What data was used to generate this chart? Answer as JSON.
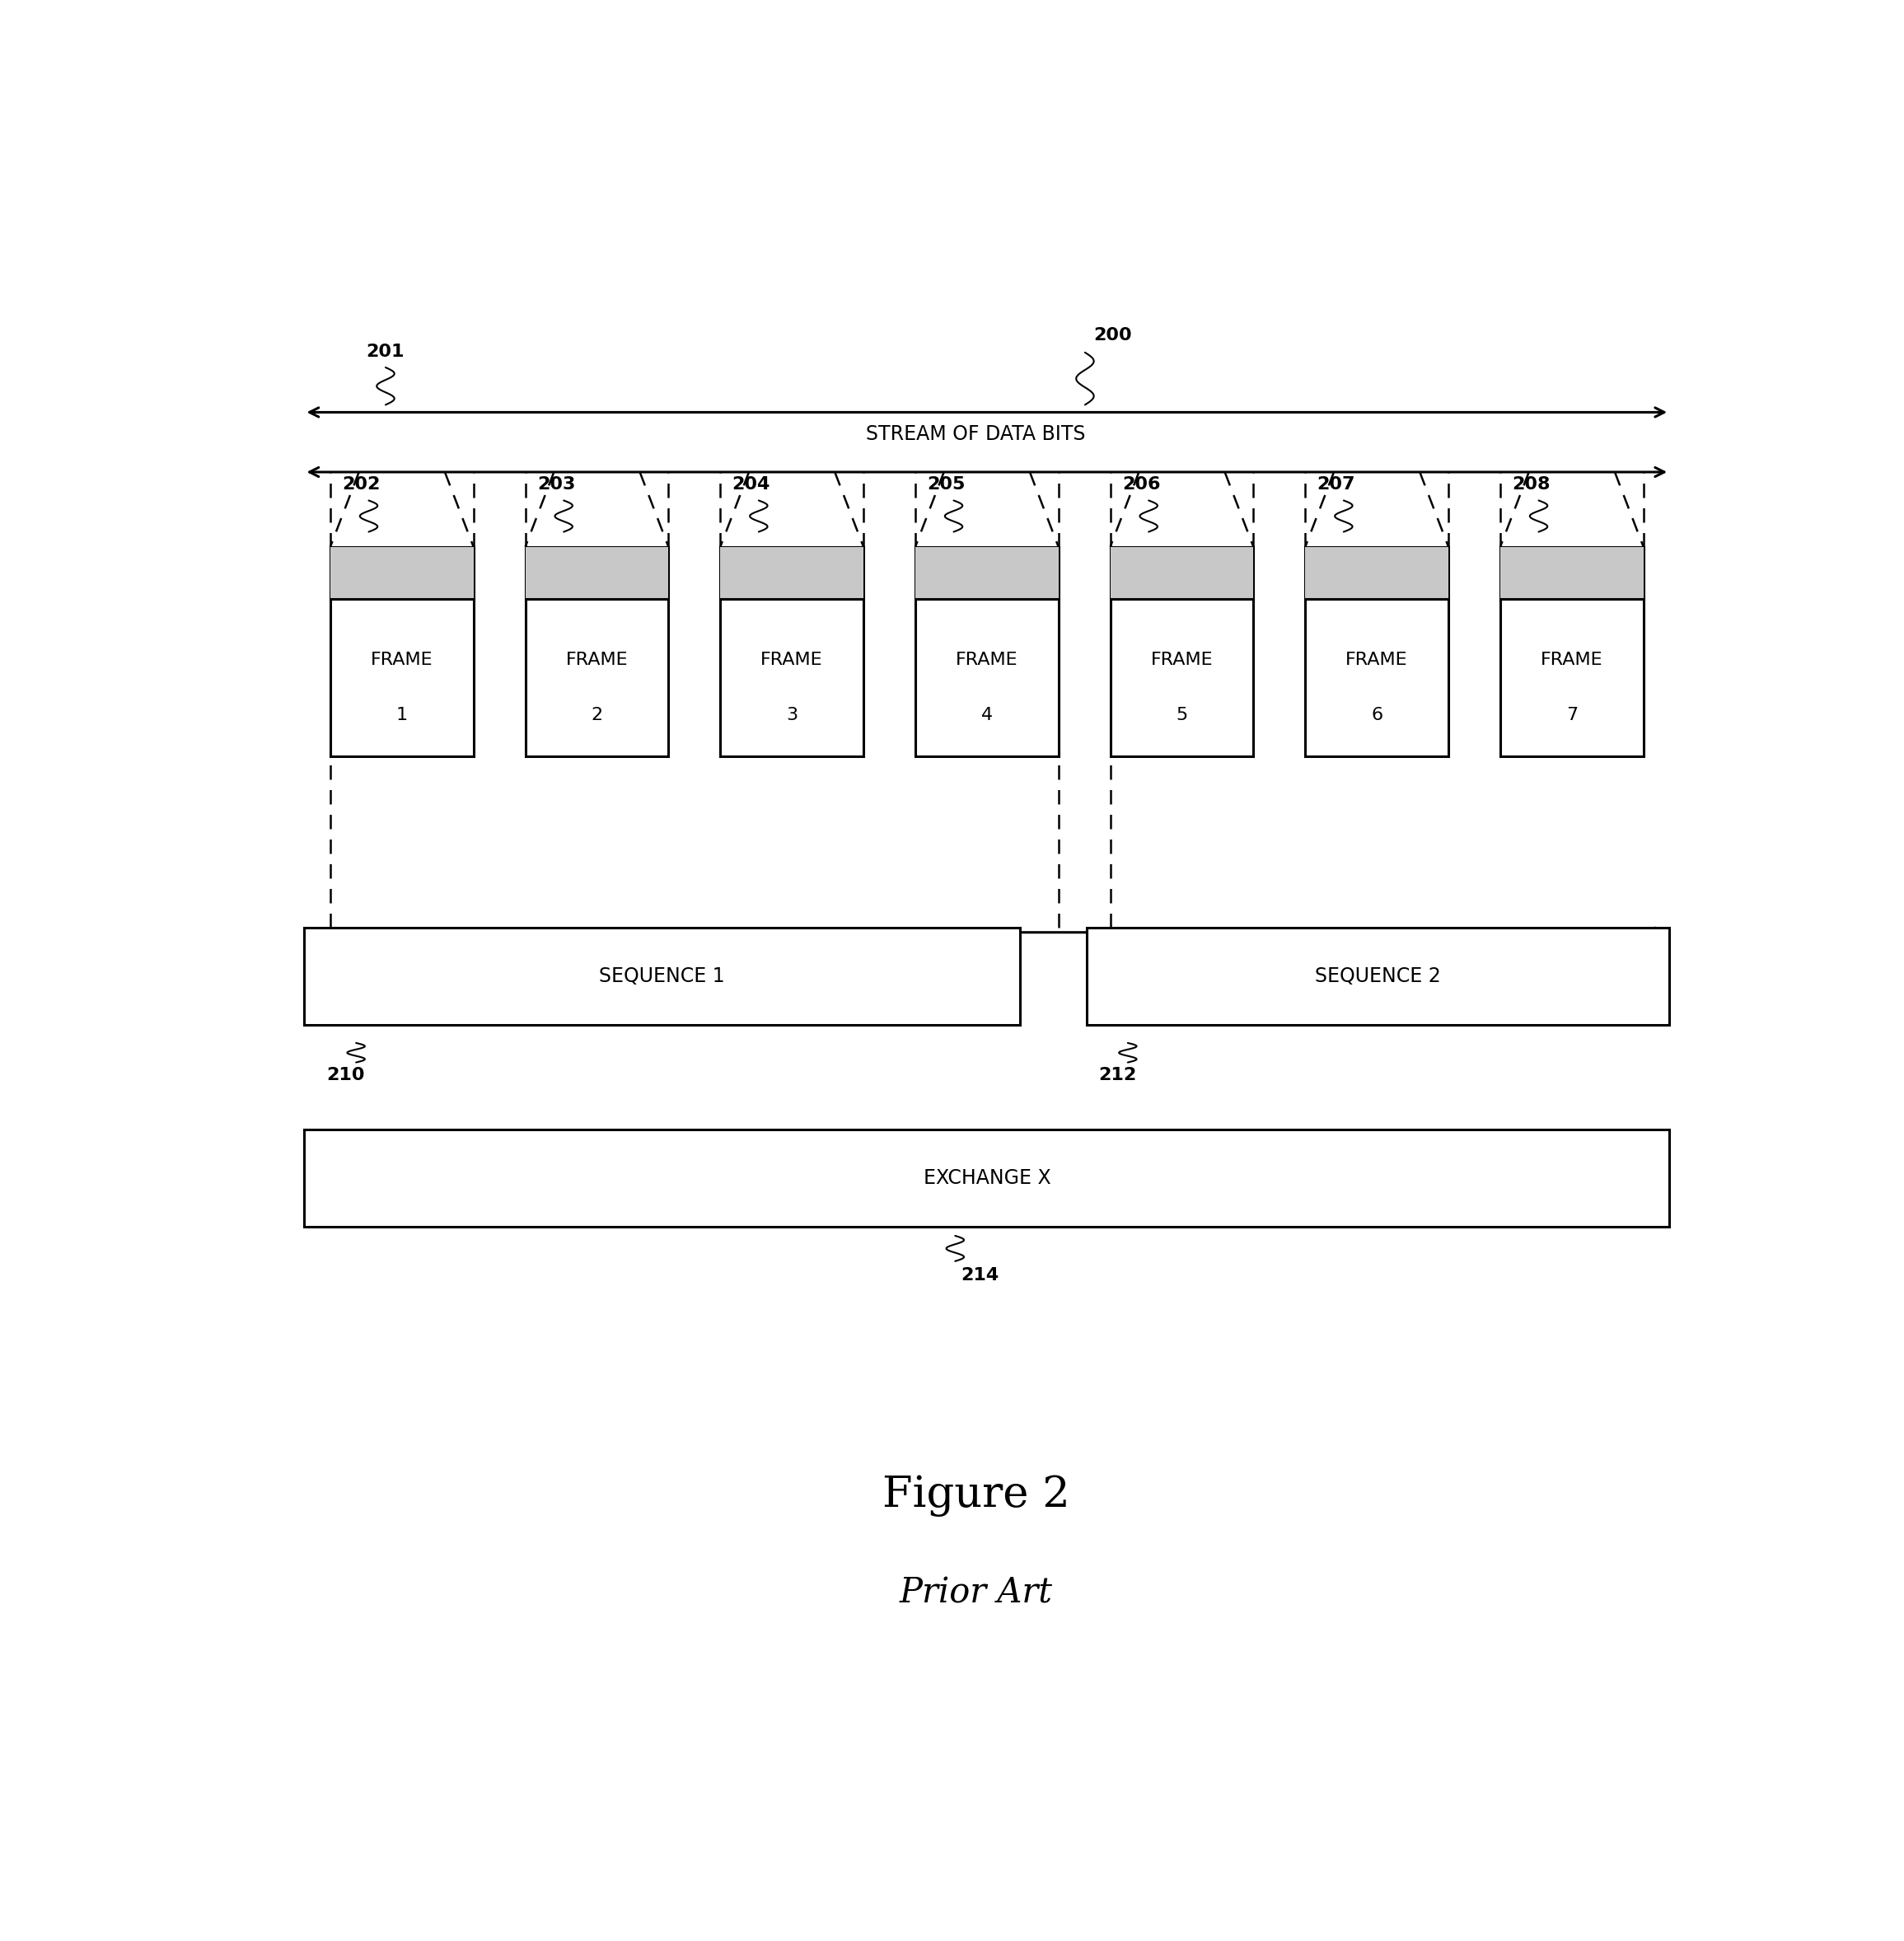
{
  "fig_width": 23.11,
  "fig_height": 23.56,
  "bg_color": "#ffffff",
  "title": "Figure 2",
  "prior_art": "Prior Art",
  "stream_label": "STREAM OF DATA BITS",
  "label_200": "200",
  "label_201": "201",
  "frame_labels": [
    "202",
    "203",
    "204",
    "205",
    "206",
    "207",
    "208"
  ],
  "frame_nums": [
    "1",
    "2",
    "3",
    "4",
    "5",
    "6",
    "7"
  ],
  "seq1_label": "SEQUENCE 1",
  "seq2_label": "SEQUENCE 2",
  "seq1_ref": "210",
  "seq2_ref": "212",
  "exch_label": "EXCHANGE X",
  "exch_ref": "214",
  "lw_main": 2.2,
  "lw_dashed": 1.8,
  "fs_frame": 16,
  "fs_num": 16,
  "fs_ref": 16,
  "fs_seq": 17,
  "fs_title": 38,
  "fs_prior": 30
}
